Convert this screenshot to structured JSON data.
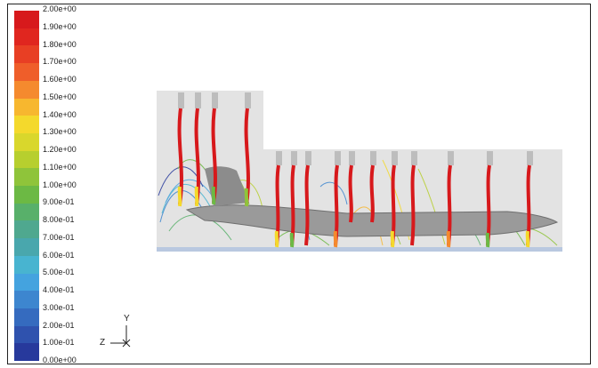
{
  "legend": {
    "labels": [
      "2.00e+00",
      "1.90e+00",
      "1.80e+00",
      "1.70e+00",
      "1.60e+00",
      "1.50e+00",
      "1.40e+00",
      "1.30e+00",
      "1.20e+00",
      "1.10e+00",
      "1.00e+00",
      "9.00e-01",
      "8.00e-01",
      "7.00e-01",
      "6.00e-01",
      "5.00e-01",
      "4.00e-01",
      "3.00e-01",
      "2.00e-01",
      "1.00e-01",
      "0.00e+00"
    ],
    "colors": [
      "#d7191c",
      "#e0261f",
      "#e83f24",
      "#ef5e2a",
      "#f58a2e",
      "#f7b72f",
      "#f4d92c",
      "#d9d72c",
      "#b7cf2e",
      "#8fc43a",
      "#6cb944",
      "#58b06a",
      "#4fa88f",
      "#49a7ad",
      "#48b4d0",
      "#44a3df",
      "#3d86cf",
      "#356bbf",
      "#2f52ae",
      "#27399c"
    ]
  },
  "axes": {
    "vertical": "Y",
    "horizontal": "Z",
    "out": "X"
  }
}
